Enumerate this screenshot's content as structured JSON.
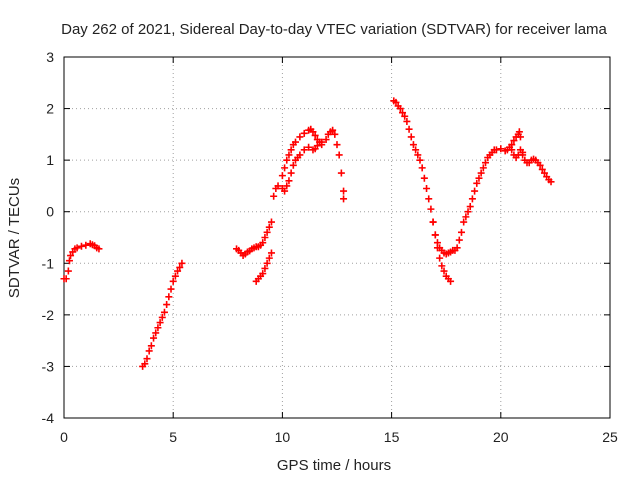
{
  "chart_data": {
    "type": "scatter",
    "title": "Day 262 of 2021, Sidereal Day-to-day VTEC variation (SDTVAR) for receiver lama",
    "xlabel": "GPS time / hours",
    "ylabel": "SDTVAR / TECUs",
    "xlim": [
      0,
      25
    ],
    "ylim": [
      -4,
      3
    ],
    "xticks": [
      "0",
      "5",
      "10",
      "15",
      "20",
      "25"
    ],
    "yticks": [
      "-4",
      "-3",
      "-2",
      "-1",
      "0",
      "1",
      "2",
      "3"
    ],
    "grid": true,
    "marker": "plus",
    "color": "#ff0000",
    "series": [
      {
        "points": [
          [
            0.0,
            -1.3
          ],
          [
            0.1,
            -1.3
          ],
          [
            0.2,
            -1.15
          ],
          [
            0.25,
            -0.95
          ],
          [
            0.3,
            -0.85
          ],
          [
            0.4,
            -0.78
          ],
          [
            0.5,
            -0.72
          ],
          [
            0.6,
            -0.7
          ],
          [
            0.8,
            -0.67
          ],
          [
            1.0,
            -0.65
          ],
          [
            1.2,
            -0.62
          ],
          [
            1.3,
            -0.64
          ],
          [
            1.4,
            -0.66
          ],
          [
            1.5,
            -0.7
          ],
          [
            1.6,
            -0.72
          ]
        ]
      },
      {
        "points": [
          [
            3.6,
            -3.0
          ],
          [
            3.7,
            -2.95
          ],
          [
            3.8,
            -2.85
          ],
          [
            3.9,
            -2.7
          ],
          [
            4.0,
            -2.6
          ],
          [
            4.1,
            -2.45
          ],
          [
            4.2,
            -2.35
          ],
          [
            4.3,
            -2.25
          ],
          [
            4.4,
            -2.15
          ],
          [
            4.5,
            -2.05
          ],
          [
            4.6,
            -1.95
          ],
          [
            4.7,
            -1.8
          ],
          [
            4.8,
            -1.65
          ],
          [
            4.9,
            -1.5
          ],
          [
            5.0,
            -1.35
          ],
          [
            5.1,
            -1.25
          ],
          [
            5.2,
            -1.15
          ],
          [
            5.3,
            -1.08
          ],
          [
            5.4,
            -1.0
          ]
        ]
      },
      {
        "points": [
          [
            7.9,
            -0.72
          ],
          [
            8.0,
            -0.75
          ],
          [
            8.1,
            -0.8
          ],
          [
            8.2,
            -0.85
          ],
          [
            8.3,
            -0.82
          ],
          [
            8.4,
            -0.78
          ],
          [
            8.5,
            -0.76
          ],
          [
            8.6,
            -0.72
          ],
          [
            8.7,
            -0.7
          ],
          [
            8.8,
            -0.68
          ],
          [
            8.9,
            -0.68
          ],
          [
            9.0,
            -0.65
          ],
          [
            9.1,
            -0.6
          ],
          [
            9.2,
            -0.5
          ],
          [
            9.3,
            -0.4
          ],
          [
            9.4,
            -0.3
          ],
          [
            9.5,
            -0.2
          ]
        ]
      },
      {
        "points": [
          [
            8.8,
            -1.35
          ],
          [
            8.9,
            -1.3
          ],
          [
            9.0,
            -1.25
          ],
          [
            9.1,
            -1.2
          ],
          [
            9.2,
            -1.1
          ],
          [
            9.3,
            -1.0
          ],
          [
            9.4,
            -0.9
          ],
          [
            9.5,
            -0.8
          ]
        ]
      },
      {
        "points": [
          [
            9.6,
            0.3
          ],
          [
            9.7,
            0.45
          ],
          [
            9.8,
            0.5
          ],
          [
            10.0,
            0.45
          ],
          [
            10.1,
            0.4
          ],
          [
            10.2,
            0.5
          ],
          [
            10.3,
            0.6
          ],
          [
            10.4,
            0.75
          ],
          [
            10.5,
            0.9
          ],
          [
            10.6,
            1.0
          ],
          [
            10.7,
            1.05
          ],
          [
            10.8,
            1.1
          ],
          [
            11.0,
            1.2
          ],
          [
            11.2,
            1.25
          ],
          [
            11.4,
            1.2
          ],
          [
            11.5,
            1.22
          ],
          [
            11.6,
            1.28
          ],
          [
            11.8,
            1.35
          ],
          [
            12.0,
            1.4
          ],
          [
            12.1,
            1.5
          ],
          [
            12.2,
            1.55
          ],
          [
            12.3,
            1.58
          ],
          [
            12.4,
            1.5
          ],
          [
            12.5,
            1.3
          ],
          [
            12.6,
            1.1
          ],
          [
            12.7,
            0.75
          ],
          [
            12.8,
            0.4
          ],
          [
            12.8,
            0.25
          ]
        ]
      },
      {
        "points": [
          [
            10.0,
            0.7
          ],
          [
            10.1,
            0.85
          ],
          [
            10.2,
            1.0
          ],
          [
            10.3,
            1.1
          ],
          [
            10.4,
            1.2
          ],
          [
            10.5,
            1.3
          ],
          [
            10.6,
            1.35
          ],
          [
            10.8,
            1.45
          ],
          [
            11.0,
            1.52
          ],
          [
            11.2,
            1.58
          ],
          [
            11.3,
            1.6
          ],
          [
            11.4,
            1.55
          ],
          [
            11.5,
            1.48
          ],
          [
            11.6,
            1.4
          ],
          [
            11.7,
            1.35
          ],
          [
            11.8,
            1.3
          ]
        ]
      },
      {
        "points": [
          [
            15.1,
            2.15
          ],
          [
            15.2,
            2.12
          ],
          [
            15.3,
            2.05
          ],
          [
            15.4,
            2.0
          ],
          [
            15.5,
            1.92
          ],
          [
            15.6,
            1.85
          ],
          [
            15.7,
            1.75
          ],
          [
            15.8,
            1.6
          ],
          [
            15.9,
            1.45
          ],
          [
            16.0,
            1.3
          ],
          [
            16.1,
            1.2
          ],
          [
            16.2,
            1.1
          ],
          [
            16.3,
            1.0
          ],
          [
            16.4,
            0.85
          ],
          [
            16.5,
            0.65
          ],
          [
            16.6,
            0.45
          ],
          [
            16.7,
            0.25
          ],
          [
            16.8,
            0.05
          ],
          [
            16.9,
            -0.2
          ],
          [
            17.0,
            -0.45
          ],
          [
            17.1,
            -0.7
          ],
          [
            17.2,
            -0.9
          ],
          [
            17.3,
            -1.05
          ],
          [
            17.4,
            -1.15
          ],
          [
            17.5,
            -1.25
          ],
          [
            17.6,
            -1.3
          ],
          [
            17.7,
            -1.35
          ]
        ]
      },
      {
        "points": [
          [
            16.9,
            -0.2
          ],
          [
            17.0,
            -0.45
          ],
          [
            17.1,
            -0.6
          ],
          [
            17.2,
            -0.7
          ],
          [
            17.3,
            -0.75
          ],
          [
            17.4,
            -0.8
          ],
          [
            17.5,
            -0.82
          ],
          [
            17.6,
            -0.8
          ],
          [
            17.7,
            -0.78
          ],
          [
            17.8,
            -0.75
          ],
          [
            17.9,
            -0.75
          ],
          [
            18.0,
            -0.7
          ],
          [
            18.1,
            -0.55
          ],
          [
            18.2,
            -0.4
          ],
          [
            18.3,
            -0.2
          ],
          [
            18.4,
            -0.1
          ],
          [
            18.5,
            0.0
          ],
          [
            18.6,
            0.1
          ],
          [
            18.7,
            0.25
          ],
          [
            18.8,
            0.4
          ],
          [
            18.9,
            0.55
          ],
          [
            19.0,
            0.65
          ],
          [
            19.1,
            0.75
          ],
          [
            19.2,
            0.85
          ],
          [
            19.3,
            0.95
          ],
          [
            19.4,
            1.05
          ],
          [
            19.5,
            1.1
          ],
          [
            19.6,
            1.15
          ],
          [
            19.7,
            1.2
          ],
          [
            19.8,
            1.2
          ],
          [
            20.0,
            1.22
          ],
          [
            20.2,
            1.18
          ],
          [
            20.3,
            1.2
          ],
          [
            20.4,
            1.25
          ],
          [
            20.5,
            1.3
          ],
          [
            20.6,
            1.38
          ],
          [
            20.7,
            1.45
          ],
          [
            20.8,
            1.5
          ],
          [
            20.85,
            1.55
          ],
          [
            20.9,
            1.45
          ],
          [
            21.0,
            1.1
          ],
          [
            21.1,
            1.0
          ],
          [
            21.2,
            0.95
          ],
          [
            21.3,
            0.95
          ],
          [
            21.4,
            1.0
          ],
          [
            21.5,
            1.02
          ],
          [
            21.6,
            1.0
          ],
          [
            21.7,
            0.95
          ],
          [
            21.8,
            0.9
          ],
          [
            21.9,
            0.82
          ],
          [
            22.0,
            0.75
          ],
          [
            22.1,
            0.68
          ],
          [
            22.2,
            0.62
          ],
          [
            22.3,
            0.58
          ]
        ]
      },
      {
        "points": [
          [
            20.4,
            1.25
          ],
          [
            20.5,
            1.2
          ],
          [
            20.6,
            1.1
          ],
          [
            20.7,
            1.05
          ],
          [
            20.8,
            1.1
          ],
          [
            20.9,
            1.2
          ],
          [
            21.0,
            1.15
          ]
        ]
      }
    ]
  }
}
